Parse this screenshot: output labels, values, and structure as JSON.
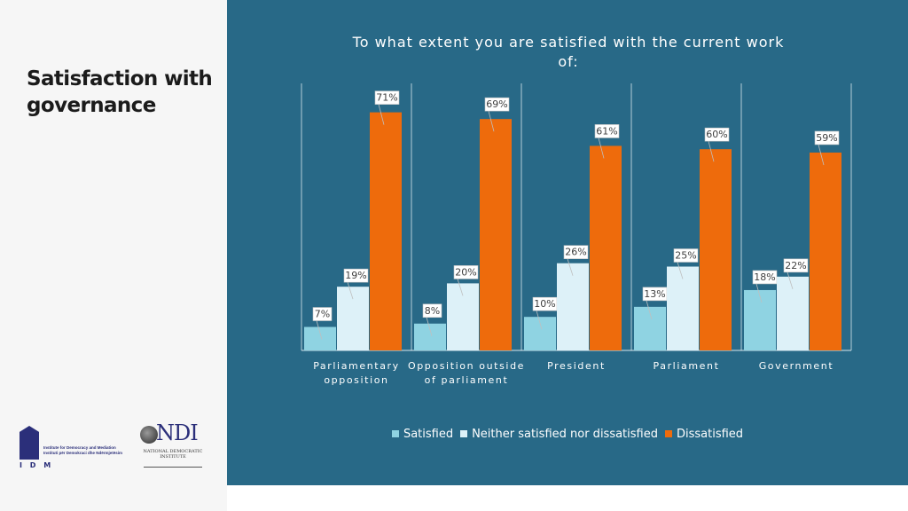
{
  "slide": {
    "title": "Satisfaction with governance"
  },
  "logos": {
    "idm": {
      "letters": "I D M",
      "name_line1": "Institute for Democracy and Mediation",
      "name_line2": "Instituti për Demokraci dhe Ndërmjetësim"
    },
    "ndi": {
      "mark": "NDI",
      "name": "NATIONAL DEMOCRATIC INSTITUTE"
    }
  },
  "colors": {
    "panel": "#286987",
    "satisfied": "#8fd3e2",
    "neither": "#ddf1f8",
    "dissatisfied": "#ee6b0c"
  },
  "chart_data": {
    "type": "bar",
    "title": "To what extent you are satisfied with the current work of:",
    "categories": [
      [
        "Parliamentary",
        "opposition"
      ],
      [
        "Opposition outside",
        "of parliament"
      ],
      [
        "President"
      ],
      [
        "Parliament"
      ],
      [
        "Government"
      ]
    ],
    "series": [
      {
        "name": "Satisfied",
        "values": [
          7,
          8,
          10,
          13,
          18
        ]
      },
      {
        "name": "Neither satisfied nor dissatisfied",
        "values": [
          19,
          20,
          26,
          25,
          22
        ]
      },
      {
        "name": "Dissatisfied",
        "values": [
          71,
          69,
          61,
          60,
          59
        ]
      }
    ],
    "unit": "%",
    "ylim": [
      0,
      80
    ],
    "legend_position": "bottom"
  }
}
